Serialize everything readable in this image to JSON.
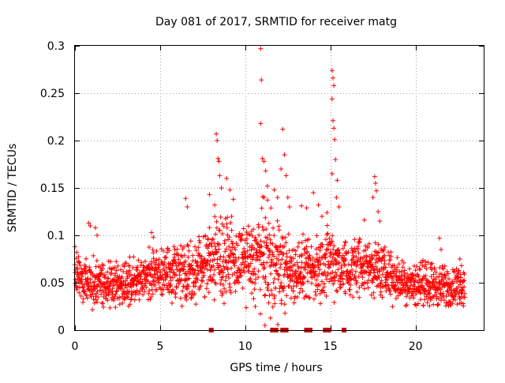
{
  "chart_data": {
    "type": "scatter",
    "title": "Day 081 of 2017, SRMTID for receiver matg",
    "xlabel": "GPS time / hours",
    "ylabel": "SRMTID / TECUs",
    "xlim": [
      0,
      24
    ],
    "ylim": [
      0,
      0.3
    ],
    "x_ticks": [
      "0",
      "5",
      "10",
      "15",
      "20"
    ],
    "x_tick_values": [
      0,
      5,
      10,
      15,
      20
    ],
    "y_ticks": [
      "0",
      "0.05",
      "0.1",
      "0.15",
      "0.2",
      "0.25",
      "0.3"
    ],
    "y_tick_values": [
      0,
      0.05,
      0.1,
      0.15,
      0.2,
      0.25,
      0.3
    ],
    "grid": true,
    "marker": "plus",
    "color": "#ff0000",
    "gap_marker_color": "#cc0000",
    "data_end_hour": 22.9,
    "baseline_level": 0.05,
    "zero_markers_x": [
      8.0,
      11.6,
      11.8,
      12.2,
      12.4,
      13.6,
      13.8,
      14.7,
      14.9,
      15.8
    ],
    "spike_points": [
      {
        "x": 0.0,
        "y": 0.088
      },
      {
        "x": 0.1,
        "y": 0.082
      },
      {
        "x": 0.8,
        "y": 0.113
      },
      {
        "x": 0.9,
        "y": 0.11
      },
      {
        "x": 1.2,
        "y": 0.108
      },
      {
        "x": 1.3,
        "y": 0.1
      },
      {
        "x": 4.5,
        "y": 0.103
      },
      {
        "x": 4.6,
        "y": 0.098
      },
      {
        "x": 6.5,
        "y": 0.139
      },
      {
        "x": 6.6,
        "y": 0.13
      },
      {
        "x": 7.9,
        "y": 0.143
      },
      {
        "x": 8.2,
        "y": 0.132
      },
      {
        "x": 8.3,
        "y": 0.207
      },
      {
        "x": 8.35,
        "y": 0.2
      },
      {
        "x": 8.4,
        "y": 0.181
      },
      {
        "x": 8.45,
        "y": 0.178
      },
      {
        "x": 8.5,
        "y": 0.163
      },
      {
        "x": 8.6,
        "y": 0.15
      },
      {
        "x": 8.9,
        "y": 0.16
      },
      {
        "x": 9.1,
        "y": 0.148
      },
      {
        "x": 9.3,
        "y": 0.138
      },
      {
        "x": 9.2,
        "y": 0.12
      },
      {
        "x": 10.9,
        "y": 0.297
      },
      {
        "x": 10.95,
        "y": 0.264
      },
      {
        "x": 10.9,
        "y": 0.218
      },
      {
        "x": 11.0,
        "y": 0.181
      },
      {
        "x": 11.1,
        "y": 0.178
      },
      {
        "x": 11.2,
        "y": 0.168
      },
      {
        "x": 11.3,
        "y": 0.152
      },
      {
        "x": 11.1,
        "y": 0.14
      },
      {
        "x": 11.7,
        "y": 0.148
      },
      {
        "x": 11.9,
        "y": 0.14
      },
      {
        "x": 12.2,
        "y": 0.212
      },
      {
        "x": 12.3,
        "y": 0.185
      },
      {
        "x": 12.1,
        "y": 0.17
      },
      {
        "x": 12.4,
        "y": 0.163
      },
      {
        "x": 12.5,
        "y": 0.14
      },
      {
        "x": 12.6,
        "y": 0.13
      },
      {
        "x": 13.3,
        "y": 0.131
      },
      {
        "x": 13.6,
        "y": 0.129
      },
      {
        "x": 14.0,
        "y": 0.145
      },
      {
        "x": 14.3,
        "y": 0.132
      },
      {
        "x": 14.5,
        "y": 0.12
      },
      {
        "x": 14.8,
        "y": 0.124
      },
      {
        "x": 15.1,
        "y": 0.274
      },
      {
        "x": 15.15,
        "y": 0.266
      },
      {
        "x": 15.2,
        "y": 0.258
      },
      {
        "x": 15.1,
        "y": 0.244
      },
      {
        "x": 15.15,
        "y": 0.221
      },
      {
        "x": 15.2,
        "y": 0.213
      },
      {
        "x": 15.25,
        "y": 0.201
      },
      {
        "x": 15.3,
        "y": 0.18
      },
      {
        "x": 15.1,
        "y": 0.165
      },
      {
        "x": 15.4,
        "y": 0.158
      },
      {
        "x": 15.35,
        "y": 0.14
      },
      {
        "x": 15.5,
        "y": 0.13
      },
      {
        "x": 17.6,
        "y": 0.162
      },
      {
        "x": 17.65,
        "y": 0.155
      },
      {
        "x": 17.7,
        "y": 0.147
      },
      {
        "x": 17.5,
        "y": 0.14
      },
      {
        "x": 17.8,
        "y": 0.125
      },
      {
        "x": 17.9,
        "y": 0.115
      },
      {
        "x": 21.4,
        "y": 0.097
      },
      {
        "x": 21.5,
        "y": 0.085
      },
      {
        "x": 22.6,
        "y": 0.075
      },
      {
        "x": 22.7,
        "y": 0.068
      }
    ],
    "envelope": [
      {
        "x": 0,
        "min": 0.03,
        "max": 0.085
      },
      {
        "x": 1,
        "min": 0.022,
        "max": 0.08
      },
      {
        "x": 2,
        "min": 0.02,
        "max": 0.075
      },
      {
        "x": 3,
        "min": 0.022,
        "max": 0.078
      },
      {
        "x": 4,
        "min": 0.025,
        "max": 0.085
      },
      {
        "x": 5,
        "min": 0.03,
        "max": 0.09
      },
      {
        "x": 6,
        "min": 0.028,
        "max": 0.1
      },
      {
        "x": 7,
        "min": 0.025,
        "max": 0.095
      },
      {
        "x": 8,
        "min": 0.03,
        "max": 0.12
      },
      {
        "x": 9,
        "min": 0.03,
        "max": 0.12
      },
      {
        "x": 10,
        "min": 0.03,
        "max": 0.11
      },
      {
        "x": 11,
        "min": 0.01,
        "max": 0.14
      },
      {
        "x": 12,
        "min": 0.01,
        "max": 0.12
      },
      {
        "x": 13,
        "min": 0.025,
        "max": 0.1
      },
      {
        "x": 14,
        "min": 0.025,
        "max": 0.1
      },
      {
        "x": 15,
        "min": 0.03,
        "max": 0.12
      },
      {
        "x": 16,
        "min": 0.025,
        "max": 0.1
      },
      {
        "x": 17,
        "min": 0.03,
        "max": 0.11
      },
      {
        "x": 18,
        "min": 0.03,
        "max": 0.095
      },
      {
        "x": 19,
        "min": 0.025,
        "max": 0.08
      },
      {
        "x": 20,
        "min": 0.025,
        "max": 0.075
      },
      {
        "x": 21,
        "min": 0.02,
        "max": 0.075
      },
      {
        "x": 22,
        "min": 0.02,
        "max": 0.07
      },
      {
        "x": 22.9,
        "min": 0.025,
        "max": 0.07
      }
    ],
    "bulk_points_per_hour": 90
  }
}
